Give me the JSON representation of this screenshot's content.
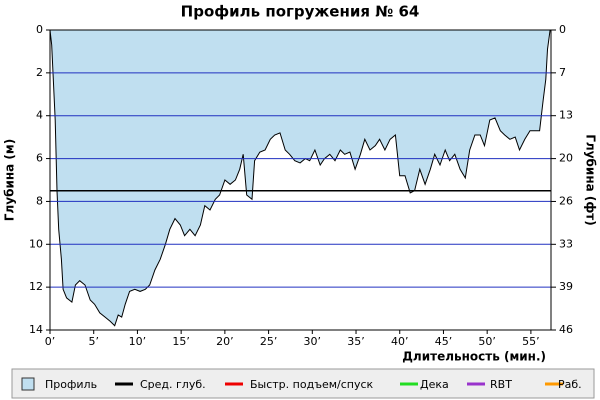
{
  "chart_data": {
    "type": "area",
    "title": "Профиль погружения № 64",
    "ylabel": "Глубина (м)",
    "y2label": "Глубина (фт)",
    "xlabel": "Длительность (мин.)",
    "xlim": [
      0,
      57.3
    ],
    "xticks": [
      {
        "value": 0,
        "label": "0’"
      },
      {
        "value": 5,
        "label": "5’"
      },
      {
        "value": 10,
        "label": "10’"
      },
      {
        "value": 15,
        "label": "15’"
      },
      {
        "value": 20,
        "label": "20’"
      },
      {
        "value": 25,
        "label": "25’"
      },
      {
        "value": 30,
        "label": "30’"
      },
      {
        "value": 35,
        "label": "35’"
      },
      {
        "value": 40,
        "label": "40’"
      },
      {
        "value": 45,
        "label": "45’"
      },
      {
        "value": 50,
        "label": "50’"
      },
      {
        "value": 55,
        "label": "55’"
      }
    ],
    "ylim": [
      0,
      14
    ],
    "yticks": [
      0,
      2,
      4,
      6,
      8,
      10,
      12,
      14
    ],
    "y2lim": [
      0,
      45.93
    ],
    "y2ticks": [
      0,
      {
        "value": 6.56,
        "label": "7"
      },
      {
        "value": 13.12,
        "label": "13"
      },
      {
        "value": 19.69,
        "label": "20"
      },
      {
        "value": 26.25,
        "label": "26"
      },
      {
        "value": 32.81,
        "label": "33"
      },
      {
        "value": 39.37,
        "label": "39"
      },
      {
        "value": 45.93,
        "label": "46"
      }
    ],
    "y_inverted": true,
    "grid": true,
    "grid_color": "#2030c0",
    "average_depth": 7.5,
    "x": [
      0,
      0.2,
      0.6,
      0.8,
      1,
      1.3,
      1.5,
      1.9,
      2.5,
      2.9,
      3.4,
      4,
      4.6,
      5.1,
      5.7,
      6.3,
      6.9,
      7.4,
      7.8,
      8.2,
      8.6,
      9.1,
      9.7,
      10.3,
      10.9,
      11.4,
      12,
      12.6,
      13.2,
      13.7,
      14.3,
      14.9,
      15.4,
      16,
      16.6,
      17.2,
      17.7,
      18.3,
      18.9,
      19.4,
      20,
      20.6,
      21.2,
      21.7,
      22.1,
      22.5,
      23.1,
      23.4,
      24,
      24.6,
      25.2,
      25.7,
      26.3,
      26.9,
      27.4,
      28,
      28.6,
      29.2,
      29.7,
      30.3,
      30.9,
      31.4,
      32,
      32.6,
      33.2,
      33.7,
      34.3,
      34.9,
      35.5,
      36,
      36.6,
      37.2,
      37.7,
      38.3,
      38.9,
      39.5,
      40,
      40.6,
      41.2,
      41.7,
      42.3,
      42.9,
      43.5,
      44,
      44.6,
      45.2,
      45.7,
      46.3,
      46.9,
      47.5,
      48,
      48.6,
      49.2,
      49.7,
      50.3,
      50.9,
      51.5,
      52,
      52.6,
      53.2,
      53.7,
      54.3,
      54.9,
      55.5,
      56,
      56.4,
      56.7,
      56.9,
      57.2
    ],
    "series": [
      {
        "name": "Профиль",
        "color": "#c0dff0",
        "values": [
          0,
          0.7,
          4.2,
          7.5,
          9.3,
          10.7,
          12.1,
          12.5,
          12.7,
          11.9,
          11.7,
          11.9,
          12.6,
          12.8,
          13.2,
          13.4,
          13.6,
          13.8,
          13.3,
          13.4,
          12.8,
          12.2,
          12.1,
          12.2,
          12.1,
          11.9,
          11.2,
          10.7,
          10.0,
          9.3,
          8.8,
          9.1,
          9.6,
          9.3,
          9.6,
          9.1,
          8.2,
          8.4,
          7.9,
          7.7,
          7.0,
          7.2,
          7.0,
          6.5,
          5.8,
          7.7,
          7.9,
          6.1,
          5.7,
          5.6,
          5.1,
          4.9,
          4.8,
          5.6,
          5.8,
          6.1,
          6.2,
          6.0,
          6.1,
          5.6,
          6.3,
          6.0,
          5.8,
          6.1,
          5.6,
          5.8,
          5.7,
          6.5,
          5.8,
          5.1,
          5.6,
          5.4,
          5.1,
          5.6,
          5.1,
          4.9,
          6.8,
          6.8,
          7.6,
          7.5,
          6.5,
          7.2,
          6.5,
          5.8,
          6.3,
          5.6,
          6.1,
          5.8,
          6.5,
          6.9,
          5.6,
          4.9,
          4.9,
          5.4,
          4.2,
          4.1,
          4.7,
          4.9,
          5.1,
          5.0,
          5.6,
          5.1,
          4.7,
          4.7,
          4.7,
          3.3,
          2.3,
          0.9,
          0
        ]
      }
    ],
    "legend_items": [
      {
        "name": "Профиль",
        "color": "#c0dff0"
      },
      {
        "name": "Сред. глуб.",
        "color": "#000000"
      },
      {
        "name": "Быстр. подъем/спуск",
        "color": "#ee0000"
      },
      {
        "name": "Дека",
        "color": "#22dd22"
      },
      {
        "name": "RBT",
        "color": "#9933cc"
      },
      {
        "name": "Раб.",
        "color": "#ff9900"
      }
    ]
  }
}
